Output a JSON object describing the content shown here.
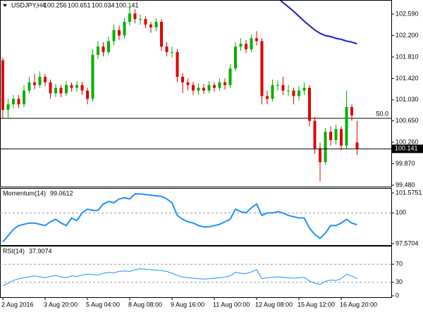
{
  "chart_data": {
    "type": "candlestick",
    "title": "USDJPY,H4",
    "categories": [
      "2 Aug 2016",
      null,
      null,
      null,
      null,
      null,
      null,
      null,
      "3 Aug 20:00",
      null,
      null,
      null,
      null,
      null,
      null,
      null,
      "5 Aug 04:00",
      null,
      null,
      null,
      null,
      null,
      null,
      null,
      "8 Aug 08:00",
      null,
      null,
      null,
      null,
      null,
      null,
      null,
      "9 Aug 16:00",
      null,
      null,
      null,
      null,
      null,
      null,
      null,
      "11 Aug 00:00",
      null,
      null,
      null,
      null,
      null,
      null,
      null,
      "12 Aug 08:00",
      null,
      null,
      null,
      null,
      null,
      null,
      null,
      "15 Aug 12:00",
      null,
      null,
      null,
      null,
      null,
      null,
      null,
      "16 Aug 20:00",
      null,
      null,
      null
    ],
    "open": [
      101.75,
      100.85,
      100.95,
      101.05,
      100.95,
      101.2,
      101.35,
      101.3,
      101.45,
      101.35,
      101.15,
      101.25,
      101.15,
      101.3,
      101.25,
      101.3,
      101.2,
      101.05,
      101.85,
      102.0,
      101.9,
      102.1,
      102.3,
      102.2,
      102.45,
      102.6,
      102.5,
      102.5,
      102.4,
      102.35,
      102.45,
      102.0,
      101.9,
      101.9,
      101.45,
      101.35,
      101.3,
      101.2,
      101.25,
      101.2,
      101.3,
      101.25,
      101.35,
      101.3,
      101.6,
      102.0,
      102.05,
      101.95,
      102.15,
      102.1,
      101.1,
      101.05,
      101.3,
      101.3,
      101.2,
      101.2,
      101.1,
      101.2,
      101.25,
      100.65,
      100.15,
      99.9,
      100.45,
      100.3,
      100.5,
      100.2,
      100.9,
      100.256
    ],
    "high": [
      101.8,
      101.05,
      101.12,
      101.12,
      101.3,
      101.45,
      101.5,
      101.55,
      101.5,
      101.4,
      101.32,
      101.3,
      101.38,
      101.35,
      101.37,
      101.36,
      101.25,
      101.95,
      102.1,
      102.08,
      102.18,
      102.4,
      102.38,
      102.52,
      102.8,
      102.68,
      102.58,
      102.55,
      102.45,
      102.52,
      102.5,
      102.08,
      102.0,
      101.95,
      101.52,
      101.42,
      101.36,
      101.33,
      101.32,
      101.37,
      101.35,
      101.42,
      101.42,
      101.68,
      102.08,
      102.15,
      102.12,
      102.22,
      102.28,
      102.15,
      101.2,
      101.4,
      101.38,
      101.45,
      101.3,
      101.25,
      101.28,
      101.35,
      101.3,
      100.72,
      100.25,
      100.52,
      100.55,
      100.58,
      100.55,
      101.2,
      100.95,
      100.651
    ],
    "low": [
      100.7,
      100.7,
      100.88,
      100.88,
      100.9,
      101.15,
      101.22,
      101.25,
      101.28,
      101.05,
      101.08,
      101.08,
      101.1,
      101.18,
      101.18,
      101.12,
      100.95,
      101.0,
      101.78,
      101.82,
      101.85,
      102.02,
      102.12,
      102.15,
      102.38,
      102.42,
      102.4,
      102.33,
      102.25,
      102.28,
      101.92,
      101.82,
      101.8,
      101.35,
      101.15,
      101.2,
      101.12,
      101.12,
      101.14,
      101.15,
      101.18,
      101.2,
      101.22,
      101.25,
      101.55,
      101.92,
      101.88,
      101.9,
      102.02,
      100.95,
      100.95,
      101.0,
      101.2,
      101.12,
      101.1,
      100.95,
      101.02,
      101.12,
      100.55,
      100.05,
      99.55,
      99.85,
      100.2,
      100.22,
      100.12,
      100.15,
      100.65,
      100.034
    ],
    "close": [
      100.85,
      100.95,
      101.05,
      100.95,
      101.2,
      101.35,
      101.3,
      101.45,
      101.35,
      101.15,
      101.25,
      101.15,
      101.3,
      101.25,
      101.3,
      101.2,
      101.05,
      101.85,
      102.0,
      101.9,
      102.1,
      102.3,
      102.2,
      102.45,
      102.6,
      102.5,
      102.5,
      102.4,
      102.35,
      102.45,
      102.0,
      101.9,
      101.9,
      101.45,
      101.35,
      101.3,
      101.2,
      101.25,
      101.2,
      101.3,
      101.25,
      101.35,
      101.3,
      101.6,
      102.0,
      102.05,
      101.95,
      102.15,
      102.1,
      101.1,
      101.05,
      101.3,
      101.3,
      101.2,
      101.2,
      101.1,
      101.2,
      101.25,
      100.65,
      100.15,
      99.9,
      100.45,
      100.3,
      100.5,
      100.2,
      100.9,
      100.75,
      100.141
    ],
    "up_color": "#00b000",
    "down_color": "#e00000",
    "moving_average": {
      "color": "#1c1cc0",
      "values": [
        null,
        null,
        null,
        null,
        null,
        null,
        null,
        null,
        null,
        null,
        null,
        null,
        null,
        null,
        null,
        null,
        null,
        null,
        null,
        null,
        null,
        null,
        null,
        null,
        null,
        null,
        null,
        null,
        null,
        null,
        null,
        null,
        null,
        null,
        null,
        null,
        null,
        null,
        null,
        null,
        null,
        null,
        null,
        null,
        null,
        null,
        null,
        null,
        null,
        null,
        null,
        null,
        102.88,
        102.8,
        102.72,
        102.64,
        102.55,
        102.46,
        102.38,
        102.3,
        102.24,
        102.2,
        102.18,
        102.15,
        102.13,
        102.1,
        102.08,
        102.05
      ]
    },
    "level": {
      "value": 100.695,
      "label": "50.0"
    },
    "ylim": [
      99.454,
      102.833
    ],
    "yticks": [
      {
        "value": 102.59,
        "label": "102.590"
      },
      {
        "value": 102.2,
        "label": "102.200"
      },
      {
        "value": 101.81,
        "label": "101.810"
      },
      {
        "value": 101.42,
        "label": "101.420"
      },
      {
        "value": 101.03,
        "label": "101.030"
      },
      {
        "value": 100.65,
        "label": "100.650"
      },
      {
        "value": 100.26,
        "label": "100.260"
      },
      {
        "value": 99.87,
        "label": "99.870"
      },
      {
        "value": 99.48,
        "label": "99.480"
      }
    ],
    "indicators": [
      {
        "name": "Momentum(14)",
        "color": "#1e90ff",
        "width": 2,
        "values": [
          97.7,
          98.2,
          98.7,
          99.0,
          99.1,
          99.2,
          99.2,
          99.1,
          99.0,
          99.3,
          99.5,
          99.2,
          99.0,
          99.6,
          99.4,
          100.0,
          100.3,
          100.2,
          100.2,
          100.7,
          100.9,
          100.8,
          101.1,
          101.2,
          101.1,
          101.5,
          101.5,
          101.45,
          101.4,
          101.35,
          101.3,
          101.1,
          100.8,
          99.8,
          99.5,
          99.3,
          99.2,
          99.0,
          98.9,
          98.9,
          99.0,
          99.1,
          99.3,
          99.5,
          100.3,
          100.1,
          100.0,
          100.4,
          100.7,
          99.8,
          100.0,
          100.0,
          100.1,
          100.0,
          99.8,
          99.7,
          99.6,
          99.6,
          98.8,
          98.3,
          98.0,
          98.4,
          99.0,
          99.0,
          99.2,
          99.5,
          99.2,
          99.0612
        ],
        "ylim": [
          97.5704,
          101.5751
        ],
        "yticks": [
          97.5704,
          100,
          101.5751
        ]
      },
      {
        "name": "RSI(14)",
        "color": "#1e90ff",
        "width": 1,
        "values": [
          22,
          28,
          34,
          38,
          40,
          42,
          44,
          42,
          40,
          43,
          45,
          42,
          40,
          44,
          43,
          46,
          48,
          47,
          46,
          50,
          52,
          51,
          54,
          55,
          54,
          58,
          60,
          59,
          58,
          57,
          56,
          54,
          50,
          45,
          42,
          40,
          39,
          38,
          37,
          38,
          39,
          40,
          42,
          44,
          52,
          50,
          49,
          53,
          58,
          38,
          40,
          41,
          42,
          41,
          40,
          39,
          40,
          41,
          33,
          28,
          25,
          32,
          35,
          34,
          38,
          48,
          44,
          37.9074
        ],
        "ylim": [
          0,
          100
        ],
        "yticks": [
          0,
          30,
          70
        ]
      }
    ]
  }
}
